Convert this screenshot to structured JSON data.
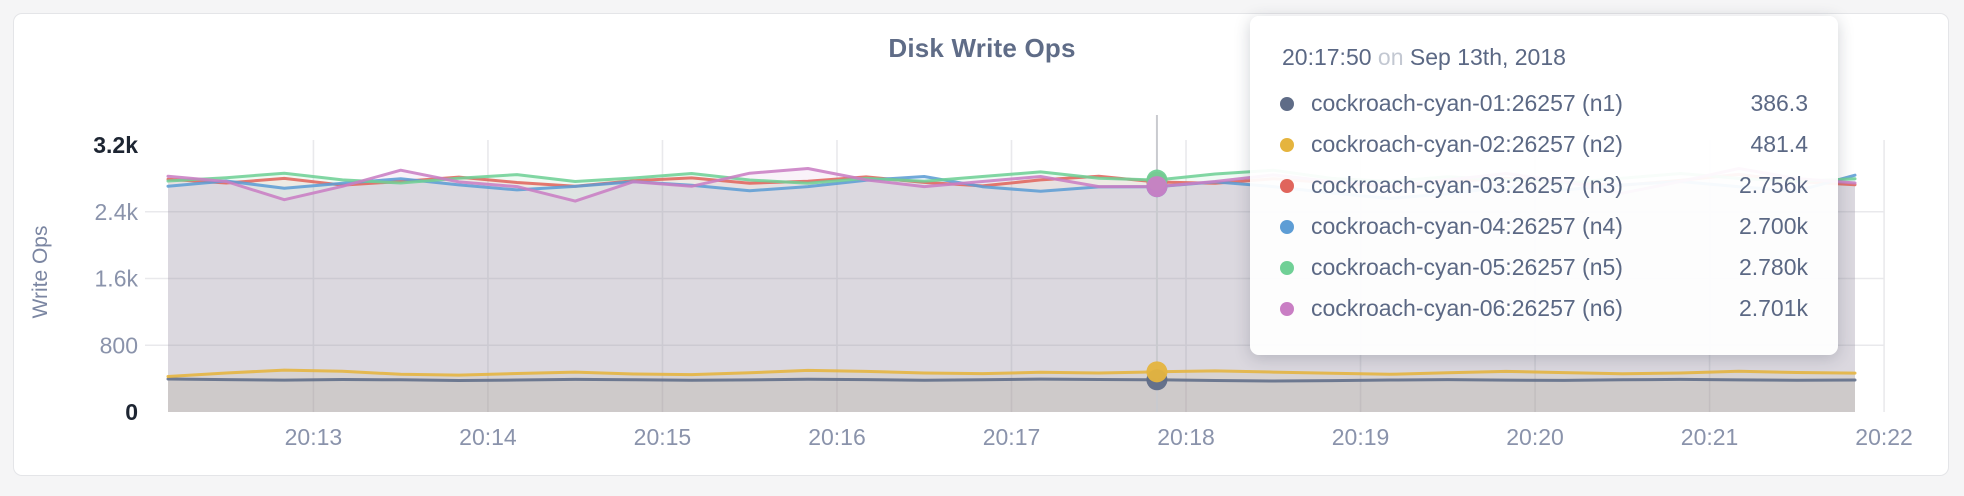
{
  "chart": {
    "title": "Disk Write Ops",
    "y_axis_label": "Write Ops"
  },
  "tooltip": {
    "time": "20:17:50",
    "conjunction": "on",
    "date": "Sep 13th, 2018",
    "rows": [
      {
        "label": "cockroach-cyan-01:26257 (n1)",
        "value": "386.3",
        "color": "#5f6c87"
      },
      {
        "label": "cockroach-cyan-02:26257 (n2)",
        "value": "481.4",
        "color": "#e5b43e"
      },
      {
        "label": "cockroach-cyan-03:26257 (n3)",
        "value": "2.756k",
        "color": "#e0655c"
      },
      {
        "label": "cockroach-cyan-04:26257 (n4)",
        "value": "2.700k",
        "color": "#5d9dd5"
      },
      {
        "label": "cockroach-cyan-05:26257 (n5)",
        "value": "2.780k",
        "color": "#70d096"
      },
      {
        "label": "cockroach-cyan-06:26257 (n6)",
        "value": "2.701k",
        "color": "#c97ec4"
      }
    ]
  },
  "chart_data": {
    "type": "line",
    "title": "Disk Write Ops",
    "ylabel": "Write Ops",
    "xlabel": "",
    "ylim": [
      0,
      3200
    ],
    "grid": true,
    "legend_position": "tooltip-overlay",
    "colors": {
      "grid": "#e9e9ec",
      "guideline": "#c9cacf",
      "tick_text": "#8a93ab",
      "tick_text_emphasis": "#1d2532",
      "axis_label": "#7b86a2",
      "fill_opacity": 0.1,
      "line_opacity": 0.88
    },
    "y_ticks": [
      {
        "v": 0,
        "label": "0",
        "emphasis": true
      },
      {
        "v": 800,
        "label": "800",
        "emphasis": false
      },
      {
        "v": 1600,
        "label": "1.6k",
        "emphasis": false
      },
      {
        "v": 2400,
        "label": "2.4k",
        "emphasis": false
      },
      {
        "v": 3200,
        "label": "3.2k",
        "emphasis": true
      }
    ],
    "x_ticks": [
      {
        "t": 780,
        "label": "20:13"
      },
      {
        "t": 840,
        "label": "20:14"
      },
      {
        "t": 900,
        "label": "20:15"
      },
      {
        "t": 960,
        "label": "20:16"
      },
      {
        "t": 1020,
        "label": "20:17"
      },
      {
        "t": 1080,
        "label": "20:18"
      },
      {
        "t": 1140,
        "label": "20:19"
      },
      {
        "t": 1200,
        "label": "20:20"
      },
      {
        "t": 1260,
        "label": "20:21"
      },
      {
        "t": 1320,
        "label": "20:22"
      }
    ],
    "x_domain_seconds": [
      730,
      1310
    ],
    "x_seconds": [
      730,
      750,
      770,
      790,
      810,
      830,
      850,
      870,
      890,
      910,
      930,
      950,
      970,
      990,
      1010,
      1030,
      1050,
      1070,
      1090,
      1110,
      1130,
      1150,
      1170,
      1190,
      1210,
      1230,
      1250,
      1270,
      1290,
      1310
    ],
    "hover_index": 17,
    "hover_time_label": "20:17:50",
    "series": [
      {
        "name": "cockroach-cyan-01:26257 (n1)",
        "color": "#5f6c87",
        "values": [
          395,
          388,
          382,
          390,
          386,
          378,
          383,
          391,
          387,
          380,
          385,
          392,
          388,
          381,
          386,
          394,
          389,
          386.3,
          378,
          371,
          376,
          384,
          388,
          382,
          379,
          386,
          391,
          385,
          380,
          384
        ]
      },
      {
        "name": "cockroach-cyan-02:26257 (n2)",
        "color": "#e5b43e",
        "values": [
          425,
          468,
          502,
          488,
          452,
          442,
          462,
          478,
          455,
          448,
          470,
          498,
          486,
          468,
          460,
          476,
          468,
          481.4,
          492,
          478,
          464,
          452,
          470,
          486,
          472,
          458,
          468,
          488,
          474,
          466
        ]
      },
      {
        "name": "cockroach-cyan-03:26257 (n3)",
        "color": "#e0655c",
        "values": [
          2790,
          2745,
          2800,
          2720,
          2762,
          2815,
          2750,
          2705,
          2772,
          2806,
          2742,
          2765,
          2818,
          2752,
          2710,
          2782,
          2825,
          2756,
          2742,
          2795,
          2748,
          2706,
          2760,
          2802,
          2748,
          2718,
          2776,
          2848,
          2762,
          2724
        ]
      },
      {
        "name": "cockroach-cyan-04:26257 (n4)",
        "color": "#5d9dd5",
        "values": [
          2705,
          2768,
          2682,
          2742,
          2795,
          2722,
          2662,
          2704,
          2760,
          2718,
          2652,
          2702,
          2778,
          2822,
          2700,
          2645,
          2698,
          2700,
          2758,
          2702,
          2625,
          2560,
          2615,
          2700,
          2662,
          2722,
          2762,
          2700,
          2648,
          2838
        ]
      },
      {
        "name": "cockroach-cyan-05:26257 (n5)",
        "color": "#70d096",
        "values": [
          2768,
          2808,
          2862,
          2782,
          2745,
          2802,
          2845,
          2762,
          2805,
          2858,
          2780,
          2742,
          2800,
          2765,
          2822,
          2878,
          2802,
          2780,
          2852,
          2898,
          2800,
          2762,
          2820,
          2782,
          2745,
          2802,
          2858,
          2800,
          2762,
          2795
        ]
      },
      {
        "name": "cockroach-cyan-06:26257 (n6)",
        "color": "#c97ec4",
        "values": [
          2825,
          2762,
          2545,
          2705,
          2898,
          2758,
          2702,
          2528,
          2760,
          2705,
          2862,
          2918,
          2782,
          2702,
          2762,
          2822,
          2702,
          2701,
          2762,
          2842,
          2762,
          2705,
          2782,
          2858,
          2762,
          2622,
          2762,
          2918,
          2798,
          2745
        ]
      }
    ]
  }
}
